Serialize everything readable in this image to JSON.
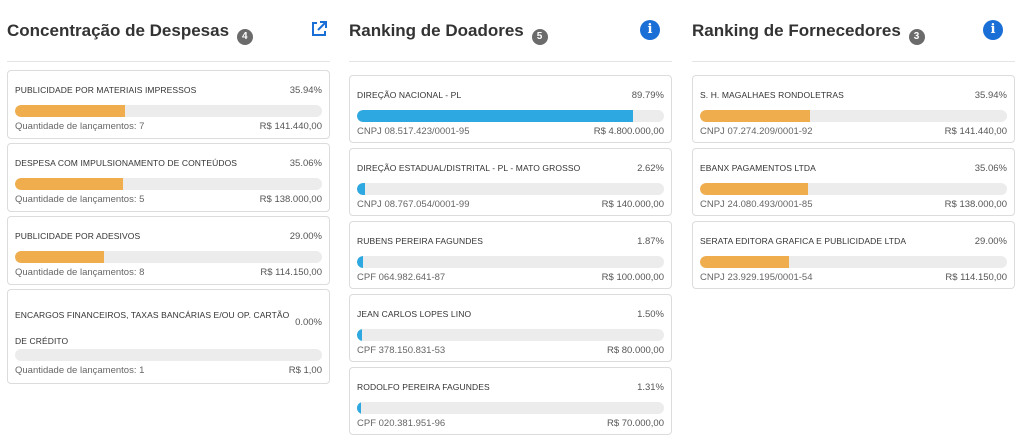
{
  "colors": {
    "orange": "#f0ad4e",
    "blue": "#2ea8e0",
    "info": "#1a6fd6",
    "badge": "#6b6b6b"
  },
  "despesas": {
    "title": "Concentração de Despesas",
    "count": "4",
    "icon": "external-link-icon",
    "items": [
      {
        "name": "PUBLICIDADE POR MATERIAIS IMPRESSOS",
        "pct": "35.94%",
        "fill": 0.3594,
        "left": "Quantidade de lançamentos: 7",
        "right": "R$ 141.440,00"
      },
      {
        "name": "DESPESA COM IMPULSIONAMENTO DE CONTEÚDOS",
        "pct": "35.06%",
        "fill": 0.3506,
        "left": "Quantidade de lançamentos: 5",
        "right": "R$ 138.000,00"
      },
      {
        "name": "PUBLICIDADE POR ADESIVOS",
        "pct": "29.00%",
        "fill": 0.29,
        "left": "Quantidade de lançamentos: 8",
        "right": "R$ 114.150,00"
      },
      {
        "name": "ENCARGOS FINANCEIROS, TAXAS BANCÁRIAS E/OU OP. CARTÃO DE CRÉDITO",
        "pct": "0.00%",
        "fill": 0.0,
        "left": "Quantidade de lançamentos: 1",
        "right": "R$ 1,00"
      }
    ]
  },
  "doadores": {
    "title": "Ranking de Doadores",
    "count": "5",
    "icon": "info-icon",
    "items": [
      {
        "name": "DIREÇÃO NACIONAL - PL",
        "pct": "89.79%",
        "fill": 0.8979,
        "left": "CNPJ 08.517.423/0001-95",
        "right": "R$ 4.800.000,00"
      },
      {
        "name": "DIREÇÃO ESTADUAL/DISTRITAL - PL - MATO GROSSO",
        "pct": "2.62%",
        "fill": 0.0262,
        "left": "CNPJ 08.767.054/0001-99",
        "right": "R$ 140.000,00"
      },
      {
        "name": "RUBENS PEREIRA FAGUNDES",
        "pct": "1.87%",
        "fill": 0.0187,
        "left": "CPF 064.982.641-87",
        "right": "R$ 100.000,00"
      },
      {
        "name": "JEAN CARLOS LOPES LINO",
        "pct": "1.50%",
        "fill": 0.015,
        "left": "CPF 378.150.831-53",
        "right": "R$ 80.000,00"
      },
      {
        "name": "RODOLFO PEREIRA FAGUNDES",
        "pct": "1.31%",
        "fill": 0.0131,
        "left": "CPF 020.381.951-96",
        "right": "R$ 70.000,00"
      }
    ]
  },
  "fornecedores": {
    "title": "Ranking de Fornecedores",
    "count": "3",
    "icon": "info-icon",
    "items": [
      {
        "name": "S. H. MAGALHAES RONDOLETRAS",
        "pct": "35.94%",
        "fill": 0.3594,
        "left": "CNPJ 07.274.209/0001-92",
        "right": "R$ 141.440,00"
      },
      {
        "name": "EBANX PAGAMENTOS LTDA",
        "pct": "35.06%",
        "fill": 0.3506,
        "left": "CNPJ 24.080.493/0001-85",
        "right": "R$ 138.000,00"
      },
      {
        "name": "SERATA EDITORA GRAFICA E PUBLICIDADE LTDA",
        "pct": "29.00%",
        "fill": 0.29,
        "left": "CNPJ 23.929.195/0001-54",
        "right": "R$ 114.150,00"
      }
    ]
  }
}
